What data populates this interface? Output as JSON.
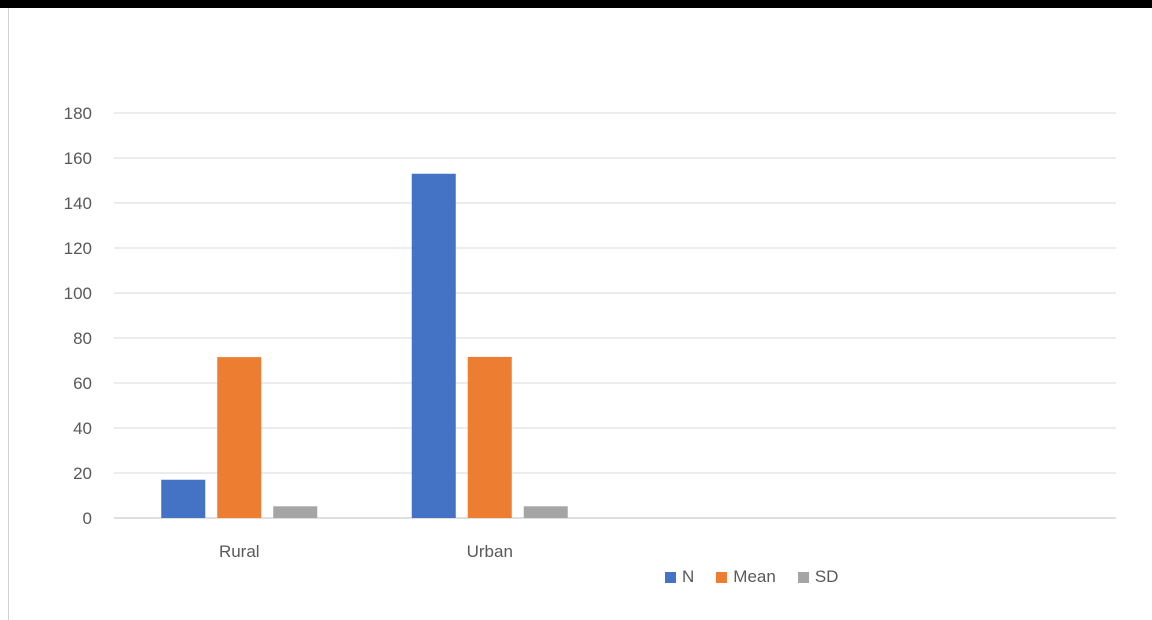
{
  "chart_data": {
    "type": "bar",
    "categories": [
      "Rural",
      "Urban",
      "",
      ""
    ],
    "series": [
      {
        "name": "N",
        "values": [
          17,
          153,
          null,
          null
        ],
        "color": "#4472C4"
      },
      {
        "name": "Mean",
        "values": [
          71.5,
          71.6,
          null,
          null
        ],
        "color": "#ED7D31"
      },
      {
        "name": "SD",
        "values": [
          5.2,
          5.2,
          null,
          null
        ],
        "color": "#A5A5A5"
      }
    ],
    "yticks": [
      "0",
      "20",
      "40",
      "60",
      "80",
      "100",
      "120",
      "140",
      "160",
      "180"
    ],
    "ylim": [
      0,
      180
    ],
    "grid": true,
    "legend_position": "bottom"
  }
}
